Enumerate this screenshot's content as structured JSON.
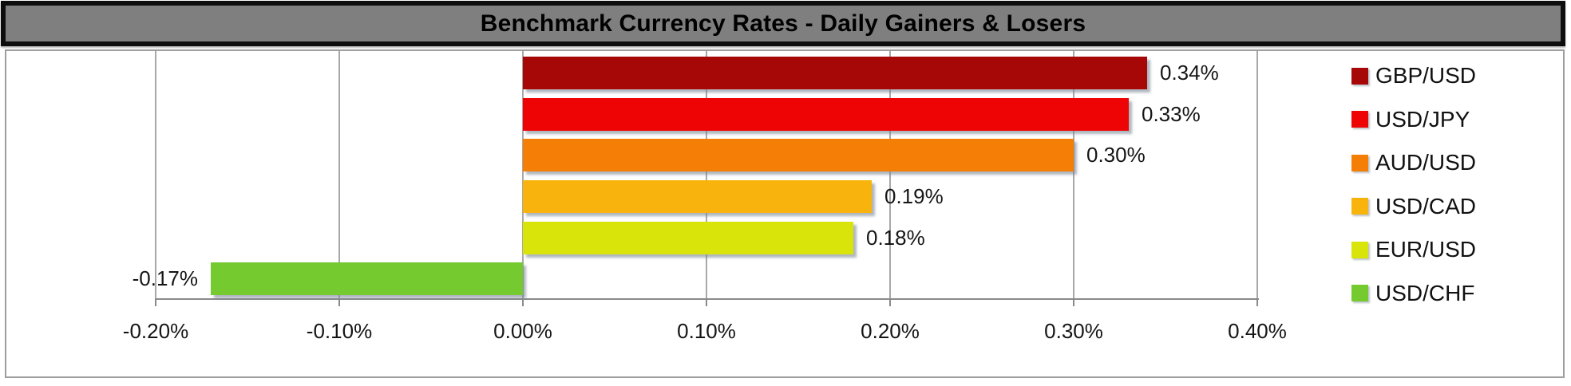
{
  "title": "Benchmark Currency Rates - Daily Gainers & Losers",
  "chart_data": {
    "type": "bar",
    "orientation": "horizontal",
    "title": "Benchmark Currency Rates - Daily Gainers & Losers",
    "series": [
      {
        "name": "GBP/USD",
        "value": 0.34,
        "label": "0.34%",
        "color": "#a60707"
      },
      {
        "name": "USD/JPY",
        "value": 0.33,
        "label": "0.33%",
        "color": "#ee0404"
      },
      {
        "name": "AUD/USD",
        "value": 0.3,
        "label": "0.30%",
        "color": "#f57e06"
      },
      {
        "name": "USD/CAD",
        "value": 0.19,
        "label": "0.19%",
        "color": "#f8b40c"
      },
      {
        "name": "EUR/USD",
        "value": 0.18,
        "label": "0.18%",
        "color": "#d9e40b"
      },
      {
        "name": "USD/CHF",
        "value": -0.17,
        "label": "-0.17%",
        "color": "#74ca2f"
      }
    ],
    "x_axis": {
      "min": -0.2,
      "max": 0.4,
      "step": 0.1,
      "tick_labels": [
        "-0.20%",
        "-0.10%",
        "0.00%",
        "0.10%",
        "0.20%",
        "0.30%",
        "0.40%"
      ]
    },
    "legend_position": "right",
    "grid": true
  },
  "colors": {
    "title_bar_bg": "#7f7f7f",
    "title_bar_border": "#0d0d0d",
    "title_text": "#000000",
    "gridline": "#a8a8a8",
    "axis_line": "#8a8a8a",
    "chart_border": "#9e9e9e",
    "label_text": "#151515"
  }
}
